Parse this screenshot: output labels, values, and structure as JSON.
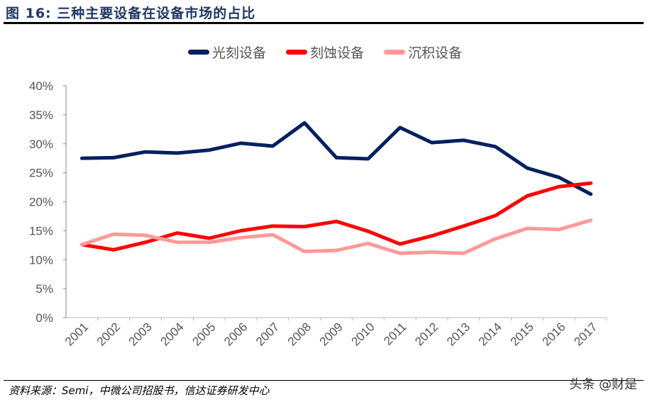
{
  "title": "图 16:  三种主要设备在设备市场的占比",
  "source": "资料来源：Semi，中微公司招股书，信达证券研发中心",
  "watermark": "头条 @财是",
  "chart_data": {
    "type": "line",
    "title": "",
    "xlabel": "",
    "ylabel": "",
    "categories": [
      "2001",
      "2002",
      "2003",
      "2004",
      "2005",
      "2006",
      "2007",
      "2008",
      "2009",
      "2010",
      "2011",
      "2012",
      "2013",
      "2014",
      "2015",
      "2016",
      "2017"
    ],
    "ylim": [
      0,
      40
    ],
    "yticks": [
      "0%",
      "5%",
      "10%",
      "15%",
      "20%",
      "25%",
      "30%",
      "35%",
      "40%"
    ],
    "grid": false,
    "legend": "top",
    "series": [
      {
        "name": "光刻设备",
        "color": "#002060",
        "values": [
          27.5,
          27.6,
          28.6,
          28.4,
          28.9,
          30.1,
          29.6,
          33.6,
          27.6,
          27.4,
          32.8,
          30.2,
          30.6,
          29.5,
          25.8,
          24.2,
          21.3
        ]
      },
      {
        "name": "刻蚀设备",
        "color": "#ff0000",
        "values": [
          12.6,
          11.7,
          13.0,
          14.6,
          13.7,
          15.0,
          15.8,
          15.7,
          16.6,
          14.9,
          12.7,
          14.1,
          15.8,
          17.6,
          21.0,
          22.6,
          23.2
        ]
      },
      {
        "name": "沉积设备",
        "color": "#ff9999",
        "values": [
          12.6,
          14.4,
          14.2,
          13.0,
          13.0,
          13.8,
          14.3,
          11.4,
          11.6,
          12.8,
          11.1,
          11.3,
          11.1,
          13.6,
          15.4,
          15.2,
          16.8
        ]
      }
    ]
  }
}
